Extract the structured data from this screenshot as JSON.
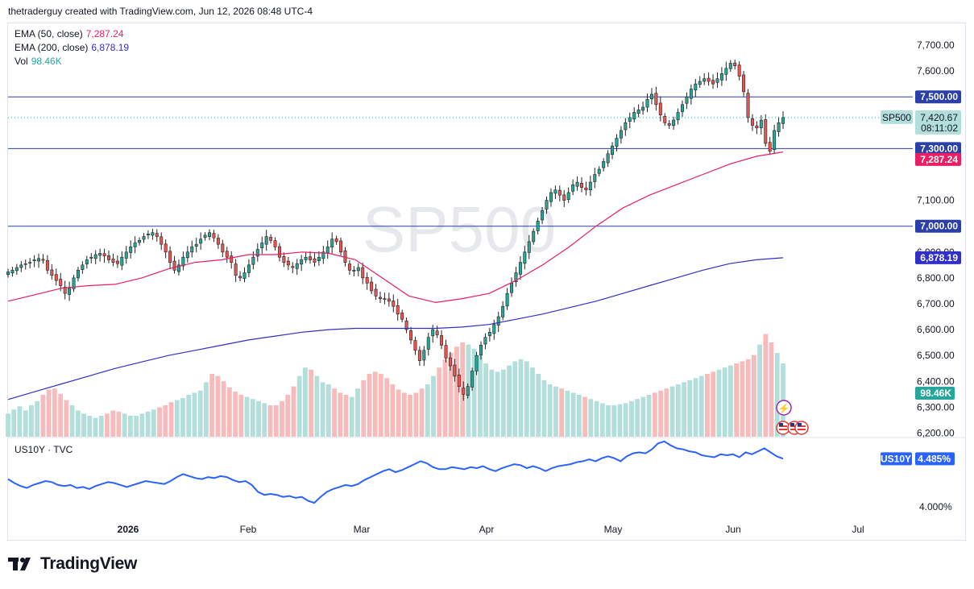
{
  "header": {
    "text": "thetraderguy created with TradingView.com, Jun 12, 2026 08:48 UTC-4"
  },
  "legend": {
    "ema50": {
      "label": "EMA (50, close)",
      "value": "7,287.24",
      "color": "#e91e63"
    },
    "ema200": {
      "label": "EMA (200, close)",
      "value": "6,878.19",
      "color": "#3030c8"
    },
    "vol": {
      "label": "Vol",
      "value": "98.46K",
      "color": "#26a69a"
    }
  },
  "watermark": "SP500",
  "brand": {
    "name": "TradingView",
    "icon": "tradingview-logo-icon"
  },
  "colors": {
    "up": "#26a69a",
    "down": "#ef5350",
    "volume_up": "#b2dfdb",
    "volume_down": "#f8bbbb",
    "hline": "#2a3fa8",
    "us10y": "#2962ff"
  },
  "chart_data": [
    {
      "type": "candlestick",
      "symbol": "SP500",
      "title": "SP500",
      "ylim": [
        6200,
        7760
      ],
      "y_ticks": [
        "7,700.00",
        "7,600.00",
        "7,100.00",
        "6,900.00",
        "6,800.00",
        "6,700.00",
        "6,600.00",
        "6,500.00",
        "6,400.00",
        "6,300.00",
        "6,200.00"
      ],
      "x_ticks": [
        "2026",
        "Feb",
        "Mar",
        "Apr",
        "May",
        "Jun",
        "Jul"
      ],
      "last_price": {
        "symbol": "SP500",
        "value": "7,420.67",
        "countdown": "08:11:02"
      },
      "horizontal_lines": [
        {
          "label": "7,500.00",
          "value": 7500
        },
        {
          "label": "7,300.00",
          "value": 7300
        },
        {
          "label": "7,000.00",
          "value": 7000
        }
      ],
      "ema50_tag": "7,287.24",
      "ema200_tag": "6,878.19",
      "volume_tag": "98.46K",
      "closes": [
        6823,
        6830,
        6840,
        6850,
        6855,
        6860,
        6870,
        6875,
        6868,
        6830,
        6810,
        6790,
        6770,
        6740,
        6760,
        6800,
        6830,
        6850,
        6870,
        6880,
        6890,
        6895,
        6885,
        6870,
        6860,
        6855,
        6880,
        6900,
        6920,
        6935,
        6945,
        6960,
        6970,
        6975,
        6960,
        6930,
        6900,
        6860,
        6830,
        6850,
        6880,
        6900,
        6920,
        6930,
        6950,
        6965,
        6975,
        6955,
        6930,
        6900,
        6880,
        6860,
        6810,
        6800,
        6820,
        6850,
        6880,
        6910,
        6935,
        6960,
        6945,
        6920,
        6880,
        6860,
        6850,
        6840,
        6855,
        6870,
        6880,
        6870,
        6860,
        6880,
        6900,
        6920,
        6950,
        6940,
        6900,
        6860,
        6830,
        6830,
        6840,
        6800,
        6780,
        6750,
        6730,
        6720,
        6720,
        6710,
        6690,
        6660,
        6640,
        6600,
        6560,
        6520,
        6480,
        6520,
        6570,
        6600,
        6580,
        6540,
        6490,
        6460,
        6420,
        6380,
        6350,
        6380,
        6440,
        6500,
        6540,
        6570,
        6590,
        6620,
        6650,
        6690,
        6740,
        6780,
        6820,
        6860,
        6900,
        6940,
        6980,
        7020,
        7060,
        7100,
        7130,
        7140,
        7120,
        7100,
        7130,
        7160,
        7170,
        7150,
        7140,
        7170,
        7200,
        7220,
        7250,
        7280,
        7310,
        7340,
        7370,
        7400,
        7420,
        7440,
        7450,
        7460,
        7490,
        7510,
        7470,
        7430,
        7400,
        7390,
        7410,
        7440,
        7470,
        7500,
        7530,
        7550,
        7560,
        7570,
        7560,
        7550,
        7570,
        7590,
        7610,
        7630,
        7620,
        7580,
        7520,
        7420,
        7390,
        7380,
        7410,
        7320,
        7290,
        7370,
        7400,
        7420
      ],
      "ema50": [
        6710,
        6735,
        6760,
        6770,
        6775,
        6800,
        6835,
        6860,
        6870,
        6890,
        6890,
        6900,
        6895,
        6870,
        6800,
        6730,
        6705,
        6720,
        6740,
        6790,
        6850,
        6920,
        7000,
        7070,
        7120,
        7160,
        7200,
        7240,
        7270,
        7287
      ],
      "ema200": [
        6330,
        6360,
        6390,
        6420,
        6450,
        6475,
        6500,
        6520,
        6540,
        6560,
        6575,
        6590,
        6600,
        6605,
        6605,
        6605,
        6605,
        6610,
        6620,
        6640,
        6660,
        6685,
        6710,
        6740,
        6770,
        6800,
        6830,
        6855,
        6870,
        6878
      ],
      "volume": [
        0.22,
        0.26,
        0.29,
        0.25,
        0.3,
        0.34,
        0.4,
        0.45,
        0.46,
        0.41,
        0.35,
        0.3,
        0.25,
        0.22,
        0.2,
        0.18,
        0.2,
        0.22,
        0.25,
        0.24,
        0.22,
        0.2,
        0.2,
        0.22,
        0.24,
        0.26,
        0.28,
        0.3,
        0.33,
        0.35,
        0.37,
        0.4,
        0.42,
        0.44,
        0.52,
        0.6,
        0.58,
        0.53,
        0.47,
        0.43,
        0.4,
        0.38,
        0.36,
        0.34,
        0.32,
        0.3,
        0.3,
        0.34,
        0.4,
        0.48,
        0.58,
        0.66,
        0.64,
        0.58,
        0.52,
        0.5,
        0.46,
        0.42,
        0.4,
        0.38,
        0.46,
        0.54,
        0.6,
        0.62,
        0.6,
        0.56,
        0.5,
        0.45,
        0.42,
        0.4,
        0.42,
        0.46,
        0.5,
        0.58,
        0.66,
        0.74,
        0.8,
        0.86,
        0.9,
        0.88,
        0.84,
        0.78,
        0.7,
        0.64,
        0.62,
        0.64,
        0.68,
        0.72,
        0.74,
        0.72,
        0.66,
        0.6,
        0.54,
        0.5,
        0.48,
        0.46,
        0.44,
        0.42,
        0.4,
        0.38,
        0.36,
        0.34,
        0.32,
        0.3,
        0.3,
        0.31,
        0.32,
        0.34,
        0.36,
        0.38,
        0.4,
        0.42,
        0.44,
        0.46,
        0.48,
        0.5,
        0.52,
        0.54,
        0.56,
        0.58,
        0.6,
        0.62,
        0.64,
        0.66,
        0.68,
        0.7,
        0.72,
        0.74,
        0.78,
        0.88,
        0.98,
        0.9,
        0.8,
        0.7
      ]
    },
    {
      "type": "line",
      "symbol": "US10Y",
      "source": "TVC",
      "last_value": "4.485%",
      "y_tick": "4.000%",
      "values": [
        4.28,
        4.24,
        4.21,
        4.19,
        4.22,
        4.24,
        4.26,
        4.25,
        4.22,
        4.21,
        4.22,
        4.19,
        4.2,
        4.18,
        4.21,
        4.23,
        4.25,
        4.24,
        4.22,
        4.2,
        4.22,
        4.24,
        4.26,
        4.25,
        4.24,
        4.23,
        4.26,
        4.3,
        4.33,
        4.31,
        4.29,
        4.28,
        4.3,
        4.29,
        4.31,
        4.3,
        4.27,
        4.25,
        4.26,
        4.22,
        4.15,
        4.12,
        4.13,
        4.12,
        4.1,
        4.11,
        4.09,
        4.1,
        4.06,
        4.04,
        4.1,
        4.15,
        4.18,
        4.2,
        4.22,
        4.21,
        4.23,
        4.27,
        4.3,
        4.33,
        4.36,
        4.38,
        4.35,
        4.37,
        4.4,
        4.43,
        4.46,
        4.44,
        4.4,
        4.38,
        4.38,
        4.4,
        4.39,
        4.38,
        4.4,
        4.39,
        4.41,
        4.38,
        4.36,
        4.39,
        4.41,
        4.43,
        4.42,
        4.39,
        4.41,
        4.39,
        4.36,
        4.39,
        4.41,
        4.42,
        4.43,
        4.45,
        4.46,
        4.48,
        4.46,
        4.49,
        4.51,
        4.49,
        4.46,
        4.51,
        4.54,
        4.55,
        4.54,
        4.58,
        4.64,
        4.66,
        4.62,
        4.59,
        4.58,
        4.56,
        4.55,
        4.52,
        4.51,
        4.5,
        4.53,
        4.52,
        4.53,
        4.5,
        4.55,
        4.53,
        4.56,
        4.59,
        4.55,
        4.51,
        4.485
      ]
    }
  ]
}
